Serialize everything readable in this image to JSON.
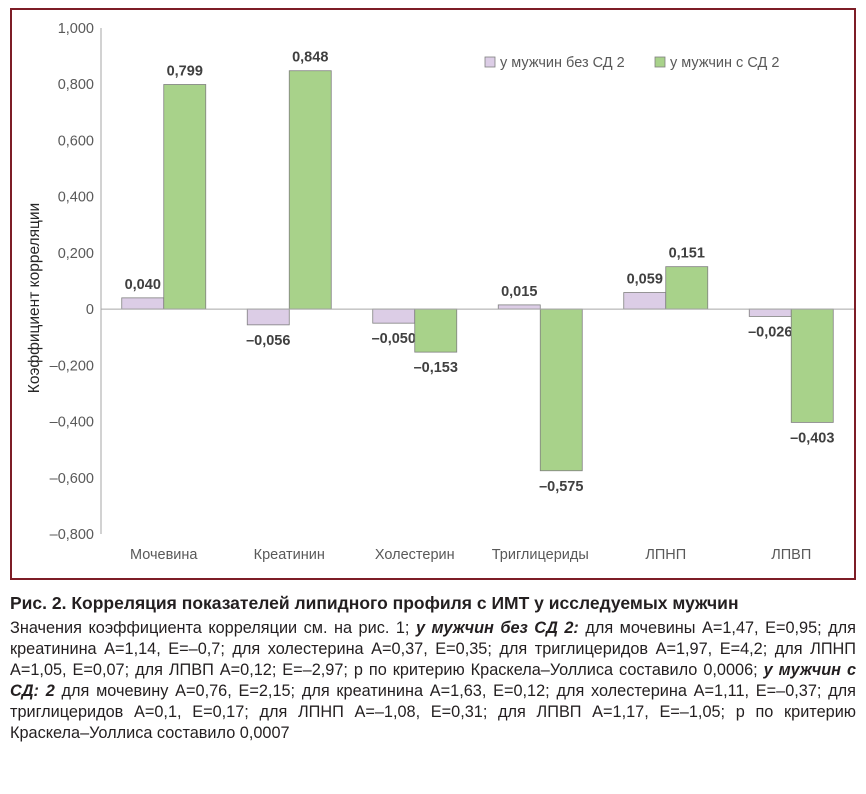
{
  "chart_data": {
    "type": "bar",
    "title": "",
    "xlabel": "",
    "ylabel": "Коэффициент корреляции",
    "ylim": [
      -0.8,
      1.0
    ],
    "yticks": [
      1.0,
      0.8,
      0.6,
      0.4,
      0.2,
      0,
      -0.2,
      -0.4,
      -0.6,
      -0.8
    ],
    "ytick_labels": [
      "1,000",
      "0,800",
      "0,600",
      "0,400",
      "0,200",
      "0",
      "–0,200",
      "–0,400",
      "–0,600",
      "–0,800"
    ],
    "grid": false,
    "legend_position": "top-right",
    "categories": [
      "Мочевина",
      "Креатинин",
      "Холестерин",
      "Триглицериды",
      "ЛПНП",
      "ЛПВП"
    ],
    "series": [
      {
        "name": "у мужчин без СД 2",
        "color": "#dccde6",
        "values": [
          0.04,
          -0.056,
          -0.05,
          0.015,
          0.059,
          -0.026
        ],
        "labels": [
          "0,040",
          "–0,056",
          "–0,050",
          "0,015",
          "0,059",
          "–0,026"
        ]
      },
      {
        "name": "у мужчин с СД 2",
        "color": "#a8d28a",
        "values": [
          0.799,
          0.848,
          -0.153,
          -0.575,
          0.151,
          -0.403
        ],
        "labels": [
          "0,799",
          "0,848",
          "–0,153",
          "–0,575",
          "0,151",
          "–0,403"
        ]
      }
    ]
  },
  "caption": {
    "title": "Рис. 2. Корреляция показателей липидного профиля с ИМТ у исследуемых мужчин",
    "part1": "Значения коэффициента корреляции см. на рис. 1; ",
    "group1": "у мужчин без СД 2:",
    "part2": " для мочевины A=1,47, E=0,95; для креатинина A=1,14, E=–0,7; для холестерина A=0,37, E=0,35; для триглицеридов A=1,97, E=4,2; для ЛПНП A=1,05, E=0,07; для ЛПВП A=0,12; E=–2,97; р по критерию Краскела–Уоллиса составило 0,0006; ",
    "group2": "у мужчин с СД: 2",
    "part3": " для мочевину A=0,76, E=2,15; для креатинина A=1,63, E=0,12; для холестерина A=1,11, E=–0,37; для триглицеридов A=0,1, E=0,17; для ЛПНП A=–1,08, E=0,31; для ЛПВП A=1,17, E=–1,05; р по критерию Краскела–Уоллиса составило 0,0007"
  }
}
